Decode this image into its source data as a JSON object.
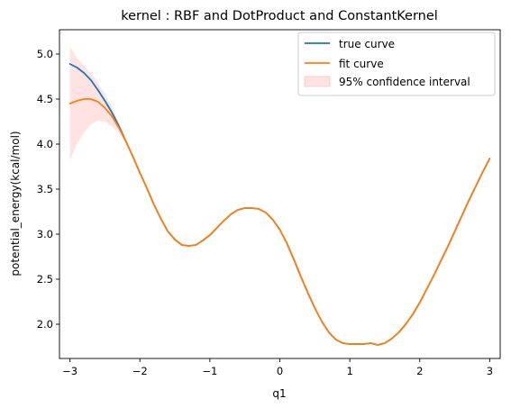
{
  "chart_data": {
    "type": "line",
    "title": "kernel : RBF and DotProduct and ConstantKernel",
    "xlabel": "q1",
    "ylabel": "potential_energy(kcal/mol)",
    "xlim": [
      -3.15,
      3.15
    ],
    "ylim": [
      1.62,
      5.27
    ],
    "xticks": [
      -3,
      -2,
      -1,
      0,
      1,
      2,
      3
    ],
    "xtick_labels": [
      "−3",
      "−2",
      "−1",
      "0",
      "1",
      "2",
      "3"
    ],
    "yticks": [
      2.0,
      2.5,
      3.0,
      3.5,
      4.0,
      4.5,
      5.0
    ],
    "ytick_labels": [
      "2.0",
      "2.5",
      "3.0",
      "3.5",
      "4.0",
      "4.5",
      "5.0"
    ],
    "grid": false,
    "legend_position": "top-right",
    "x": [
      -3.0,
      -2.9,
      -2.8,
      -2.7,
      -2.6,
      -2.5,
      -2.4,
      -2.3,
      -2.2,
      -2.1,
      -2.0,
      -1.9,
      -1.8,
      -1.7,
      -1.6,
      -1.5,
      -1.4,
      -1.3,
      -1.2,
      -1.1,
      -1.0,
      -0.9,
      -0.8,
      -0.7,
      -0.6,
      -0.5,
      -0.4,
      -0.3,
      -0.2,
      -0.1,
      0.0,
      0.1,
      0.2,
      0.3,
      0.4,
      0.5,
      0.6,
      0.7,
      0.8,
      0.9,
      1.0,
      1.1,
      1.2,
      1.3,
      1.4,
      1.5,
      1.6,
      1.7,
      1.8,
      1.9,
      2.0,
      2.1,
      2.2,
      2.3,
      2.4,
      2.5,
      2.6,
      2.7,
      2.8,
      2.9,
      3.0
    ],
    "series": [
      {
        "name": "true curve",
        "color": "#1f77b4",
        "values": [
          4.89,
          4.85,
          4.79,
          4.71,
          4.6,
          4.48,
          4.35,
          4.2,
          4.03,
          3.86,
          3.68,
          3.51,
          3.33,
          3.17,
          3.03,
          2.94,
          2.88,
          2.87,
          2.88,
          2.93,
          2.99,
          3.07,
          3.15,
          3.22,
          3.27,
          3.29,
          3.29,
          3.28,
          3.24,
          3.16,
          3.05,
          2.9,
          2.72,
          2.53,
          2.35,
          2.18,
          2.03,
          1.91,
          1.83,
          1.79,
          1.78,
          1.78,
          1.78,
          1.79,
          1.77,
          1.79,
          1.84,
          1.91,
          2.0,
          2.11,
          2.24,
          2.39,
          2.54,
          2.7,
          2.86,
          3.03,
          3.2,
          3.37,
          3.53,
          3.69,
          3.84
        ]
      },
      {
        "name": "fit curve",
        "color": "#ff7f0e",
        "values": [
          4.45,
          4.48,
          4.5,
          4.5,
          4.47,
          4.4,
          4.31,
          4.18,
          4.03,
          3.86,
          3.68,
          3.51,
          3.33,
          3.17,
          3.03,
          2.94,
          2.88,
          2.87,
          2.88,
          2.93,
          2.99,
          3.07,
          3.15,
          3.22,
          3.27,
          3.29,
          3.29,
          3.28,
          3.24,
          3.16,
          3.05,
          2.9,
          2.72,
          2.53,
          2.35,
          2.18,
          2.03,
          1.91,
          1.83,
          1.79,
          1.78,
          1.78,
          1.78,
          1.79,
          1.77,
          1.79,
          1.84,
          1.91,
          2.0,
          2.11,
          2.24,
          2.39,
          2.54,
          2.7,
          2.86,
          3.03,
          3.2,
          3.37,
          3.53,
          3.69,
          3.84
        ]
      }
    ],
    "confidence_band": {
      "name": "95% confidence interval",
      "color": "#ffcccc",
      "x": [
        -3.0,
        -2.9,
        -2.8,
        -2.7,
        -2.6,
        -2.5,
        -2.4,
        -2.3,
        -2.2,
        -2.1
      ],
      "lower": [
        3.82,
        4.0,
        4.13,
        4.22,
        4.26,
        4.25,
        4.2,
        4.12,
        4.01,
        3.86
      ],
      "upper": [
        5.08,
        4.96,
        4.87,
        4.78,
        4.68,
        4.55,
        4.42,
        4.24,
        4.05,
        3.86
      ]
    }
  }
}
